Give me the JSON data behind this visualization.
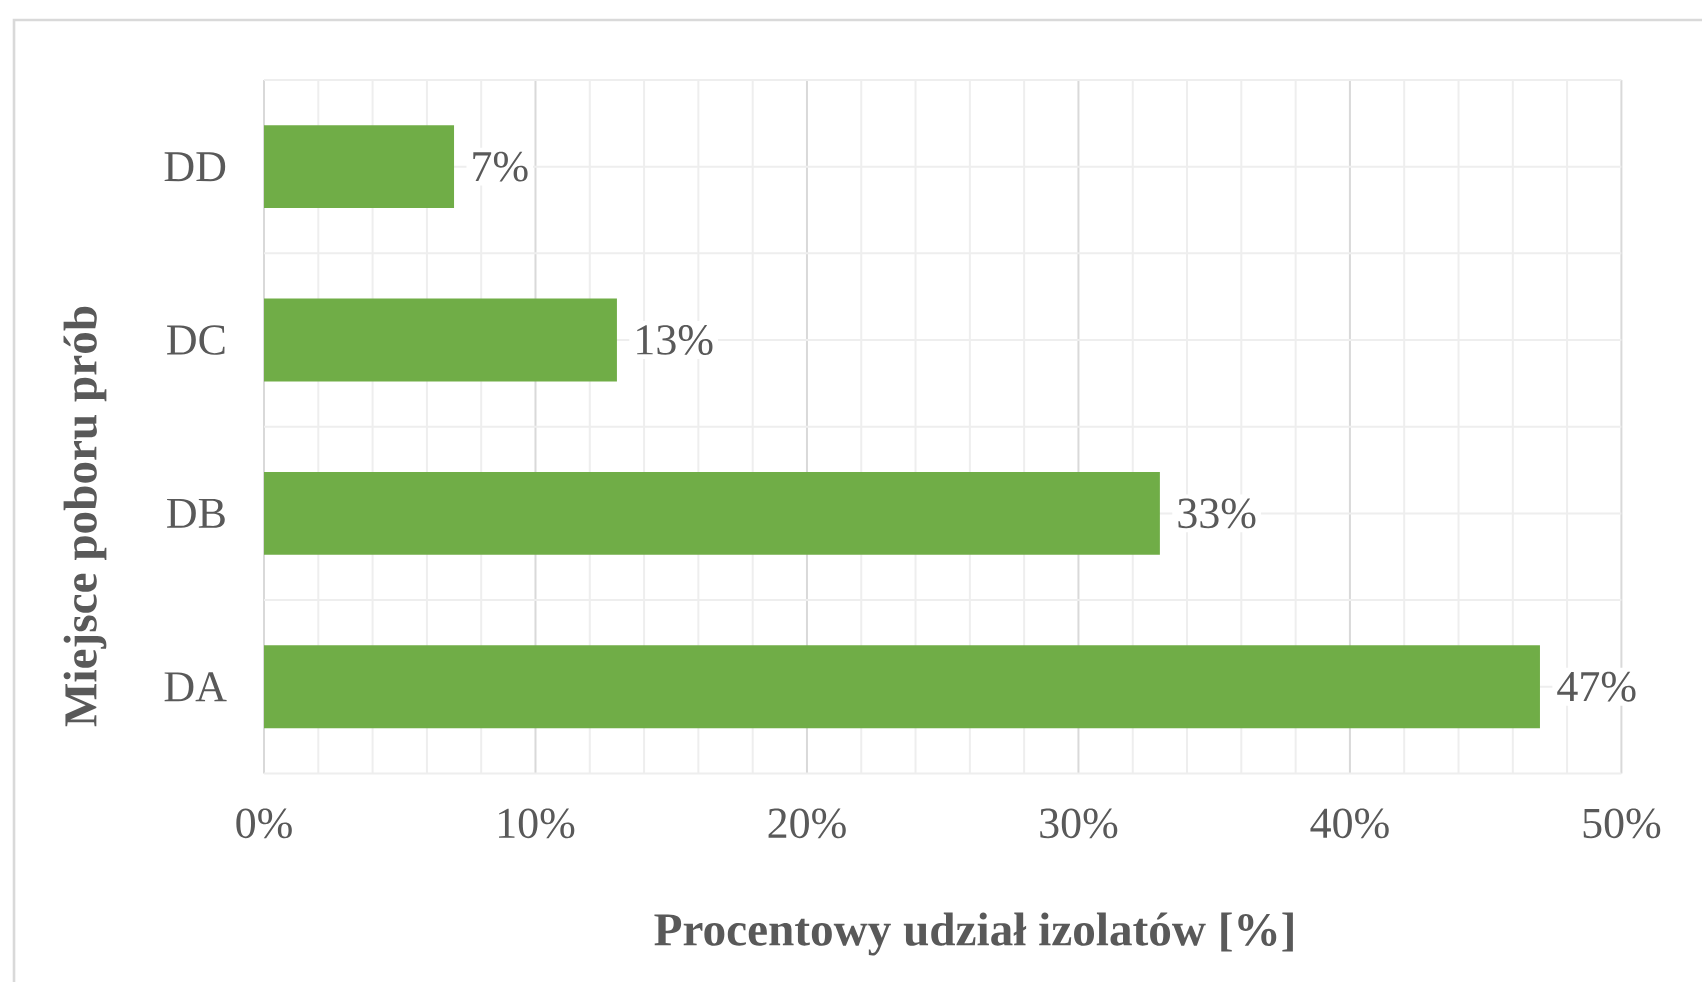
{
  "chart_data": {
    "type": "bar",
    "orientation": "horizontal",
    "xlabel": "Procentowy udział izolatów [%]",
    "ylabel": "Miejsce poboru prób",
    "categories": [
      "DD",
      "DC",
      "DB",
      "DA"
    ],
    "values": [
      7,
      13,
      33,
      47
    ],
    "value_labels": [
      "7%",
      "13%",
      "33%",
      "47%"
    ],
    "color": "#70ad47",
    "xlim": [
      0,
      50
    ],
    "xticks": [
      {
        "value": 0,
        "label": "0%"
      },
      {
        "value": 10,
        "label": "10%"
      },
      {
        "value": 20,
        "label": "20%"
      },
      {
        "value": 30,
        "label": "30%"
      },
      {
        "value": 40,
        "label": "40%"
      },
      {
        "value": 50,
        "label": "50%"
      }
    ],
    "grid": true
  }
}
